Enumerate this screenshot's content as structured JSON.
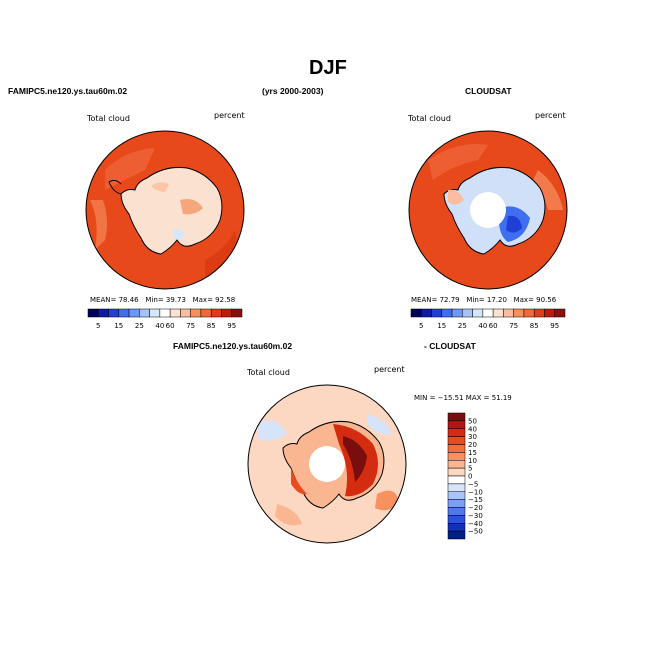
{
  "title": "DJF",
  "left_header": "FAMIPC5.ne120.ys.tau60m.02",
  "mid_header": "(yrs 2000-2003)",
  "right_header": "CLOUDSAT",
  "diff_left_header": "FAMIPC5.ne120.ys.tau60m.02",
  "diff_right_header": "- CLOUDSAT",
  "panels": [
    {
      "field": "Total cloud",
      "units": "percent",
      "mean_label": "MEAN=",
      "mean": "78.46",
      "min_label": "Min=",
      "min": "39.73",
      "max_label": "Max=",
      "max": "92.58"
    },
    {
      "field": "Total cloud",
      "units": "percent",
      "mean_label": "MEAN=",
      "mean": "72.79",
      "min_label": "Min=",
      "min": "17.20",
      "max_label": "Max=",
      "max": "90.56"
    },
    {
      "field": "Total cloud",
      "units": "percent",
      "minmax": "MIN = −15.51  MAX =  51.19"
    }
  ],
  "colorbar_h": {
    "ticks": [
      "5",
      "15",
      "25",
      "40",
      "60",
      "75",
      "85",
      "95"
    ],
    "colors": [
      "#00005a",
      "#0d1aa6",
      "#1f3fd6",
      "#3f6ef0",
      "#6d98f5",
      "#a6c3f7",
      "#d6e6fb",
      "#ffffff",
      "#fde2d2",
      "#fbbd9e",
      "#f7905f",
      "#f1683a",
      "#e03d18",
      "#c01a0a",
      "#8b0f0f"
    ]
  },
  "colorbar_v": {
    "ticks": [
      "50",
      "40",
      "30",
      "20",
      "15",
      "10",
      "5",
      "0",
      "−5",
      "−10",
      "−15",
      "−20",
      "−30",
      "−40",
      "−50"
    ],
    "colors": [
      "#7a0d0d",
      "#b3160e",
      "#d42c10",
      "#ea4a1c",
      "#f36e3a",
      "#f7925f",
      "#fab691",
      "#fcd8c2",
      "#ffffff",
      "#d6e4fa",
      "#a9c4f6",
      "#7ca0f1",
      "#4f78ea",
      "#2a52dc",
      "#1230b8",
      "#001f8a"
    ]
  },
  "maps": {
    "land_color": "#fbe1d0",
    "ocean_color": "#e8491b",
    "cloudsat_land_color": "#cfe0f8",
    "hole_color": "#ffffff"
  }
}
